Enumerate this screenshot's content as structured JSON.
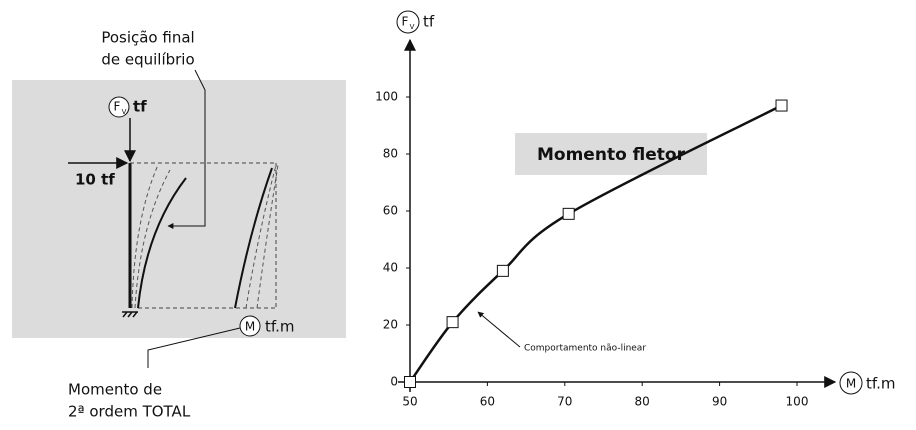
{
  "chart_data": {
    "type": "line",
    "x_label": {
      "symbol": "M",
      "unit": "tf.m"
    },
    "y_label": {
      "symbol": "F",
      "subscript": "V",
      "unit": "tf"
    },
    "annotations": [
      "Momento fletor",
      "Comportamento não-linear"
    ],
    "x": [
      50,
      55.5,
      62,
      70.5,
      98
    ],
    "values": [
      0,
      21,
      39,
      59,
      97
    ],
    "color": "#111111",
    "xlim": [
      50,
      100
    ],
    "xticks": [
      50,
      60,
      70,
      80,
      90,
      100
    ],
    "ylim": [
      0,
      100
    ],
    "yticks": [
      0,
      20,
      40,
      60,
      80,
      100
    ],
    "grid": false
  },
  "diagram": {
    "final_position": [
      "Posição final",
      "de equilíbrio"
    ],
    "force": {
      "symbol": "F",
      "subscript": "V",
      "unit": "tf"
    },
    "load": "10 tf",
    "moment": {
      "symbol": "M",
      "unit": "tf.m"
    },
    "moment_label": [
      "Momento de",
      "2ª ordem TOTAL"
    ]
  }
}
